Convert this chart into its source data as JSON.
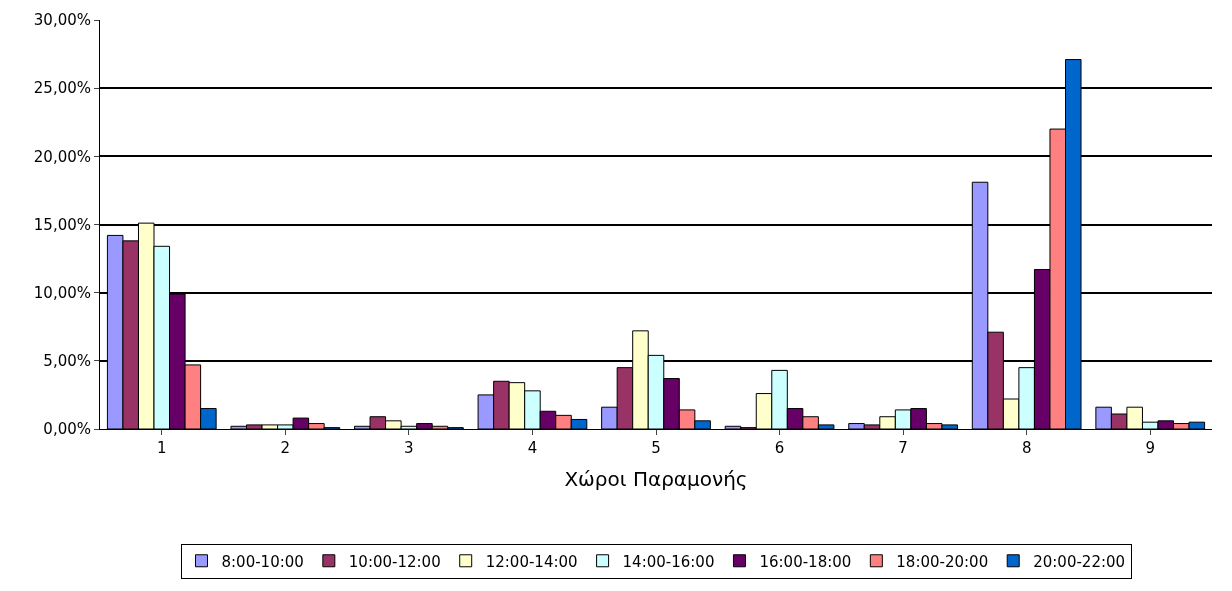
{
  "chart_data": {
    "type": "bar",
    "xlabel": "Χώροι Παραμονής",
    "categories": [
      "1",
      "2",
      "3",
      "4",
      "5",
      "6",
      "7",
      "8",
      "9"
    ],
    "series": [
      {
        "name": "8:00-10:00",
        "color": "#9999ff",
        "values": [
          14.2,
          0.2,
          0.2,
          2.5,
          1.6,
          0.2,
          0.4,
          18.1,
          1.6
        ]
      },
      {
        "name": "10:00-12:00",
        "color": "#993366",
        "values": [
          13.8,
          0.3,
          0.9,
          3.5,
          4.5,
          0.1,
          0.3,
          7.1,
          1.1
        ]
      },
      {
        "name": "12:00-14:00",
        "color": "#ffffcc",
        "values": [
          15.1,
          0.3,
          0.6,
          3.4,
          7.2,
          2.6,
          0.9,
          2.2,
          1.6
        ]
      },
      {
        "name": "14:00-16:00",
        "color": "#ccffff",
        "values": [
          13.4,
          0.3,
          0.2,
          2.8,
          5.4,
          4.3,
          1.4,
          4.5,
          0.5
        ]
      },
      {
        "name": "16:00-18:00",
        "color": "#660066",
        "values": [
          9.9,
          0.8,
          0.4,
          1.3,
          3.7,
          1.5,
          1.5,
          11.7,
          0.6
        ]
      },
      {
        "name": "18:00-20:00",
        "color": "#ff8080",
        "values": [
          4.7,
          0.4,
          0.2,
          1.0,
          1.4,
          0.9,
          0.4,
          22.0,
          0.4
        ]
      },
      {
        "name": "20:00-22:00",
        "color": "#0066cc",
        "values": [
          1.5,
          0.1,
          0.1,
          0.7,
          0.6,
          0.3,
          0.3,
          27.1,
          0.5
        ]
      }
    ],
    "ylim": [
      0,
      30
    ],
    "yticks": [
      {
        "value": 0,
        "label": "0,00%"
      },
      {
        "value": 5,
        "label": "5,00%"
      },
      {
        "value": 10,
        "label": "10,00%"
      },
      {
        "value": 15,
        "label": "15,00%"
      },
      {
        "value": 20,
        "label": "20,00%"
      },
      {
        "value": 25,
        "label": "25,00%"
      },
      {
        "value": 30,
        "label": "30,00%"
      }
    ],
    "grid": "y",
    "legend": "bottom"
  }
}
